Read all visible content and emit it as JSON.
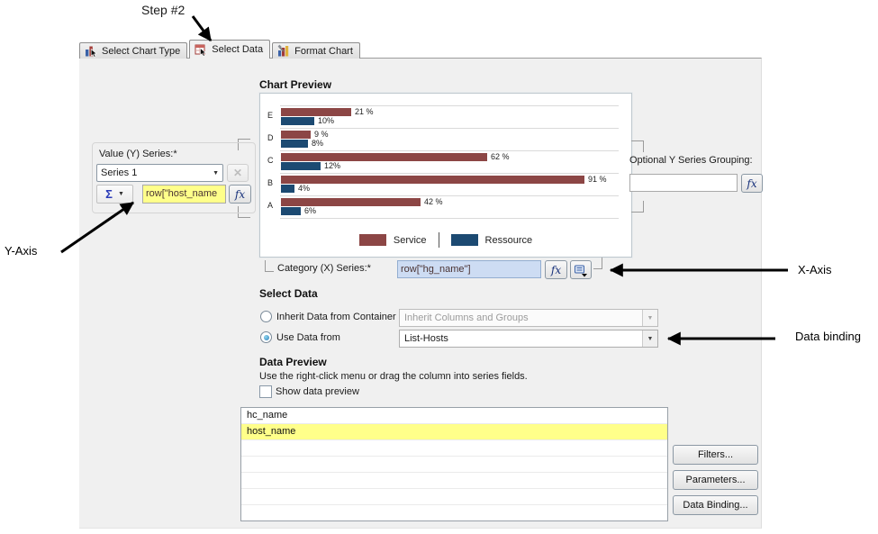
{
  "colors": {
    "service_bar": "#8c4645",
    "ressource_bar": "#1c4a72",
    "yellow_highlight": "#ffff8a",
    "blue_highlight": "#cddcf3",
    "panel_bg": "#f0f0f0"
  },
  "icons": {
    "dropdown_caret": "▼",
    "remove_series": "✕",
    "sigma": "Σ"
  },
  "annotations": {
    "step_label": "Step #2",
    "y_axis_label": "Y-Axis",
    "x_axis_label": "X-Axis",
    "data_binding_label": "Data binding"
  },
  "tabs": [
    {
      "label": "Select Chart Type",
      "icon": "chart-type-icon",
      "active": false
    },
    {
      "label": "Select Data",
      "icon": "select-data-icon",
      "active": true
    },
    {
      "label": "Format Chart",
      "icon": "format-chart-icon",
      "active": false
    }
  ],
  "chart_preview": {
    "title": "Chart Preview"
  },
  "chart_data": {
    "type": "bar",
    "orientation": "horizontal",
    "categories": [
      "E",
      "D",
      "C",
      "B",
      "A"
    ],
    "series": [
      {
        "name": "Service",
        "color": "#8c4645",
        "values": [
          21,
          9,
          62,
          91,
          42
        ],
        "labels": [
          "21 %",
          "9 %",
          "62 %",
          "91 %",
          "42 %"
        ]
      },
      {
        "name": "Ressource",
        "color": "#1c4a72",
        "values": [
          10,
          8,
          12,
          4,
          6
        ],
        "labels": [
          "10%",
          "8%",
          "12%",
          "4%",
          "6%"
        ]
      }
    ],
    "xlim": [
      0,
      100
    ],
    "grid": true,
    "legend_position": "bottom"
  },
  "y_series": {
    "label": "Value (Y) Series:*",
    "selected_series": "Series 1",
    "expression": "row[\"host_name",
    "fx": "fx"
  },
  "y_grouping": {
    "label": "Optional Y Series Grouping:",
    "value": "",
    "fx": "fx"
  },
  "x_series": {
    "label": "Category (X) Series:*",
    "expression": "row[\"hg_name\"]",
    "fx": "fx"
  },
  "select_data": {
    "title": "Select Data",
    "options": [
      {
        "label": "Inherit Data from Container",
        "selected": false,
        "value": "Inherit Columns and Groups",
        "enabled": false
      },
      {
        "label": "Use Data from",
        "selected": true,
        "value": "List-Hosts",
        "enabled": true
      }
    ]
  },
  "data_preview": {
    "title": "Data Preview",
    "hint": "Use the right-click menu or drag the column into series fields.",
    "show_checkbox_label": "Show data preview",
    "show_checked": false,
    "columns": [
      {
        "name": "hc_name",
        "highlighted": false
      },
      {
        "name": "host_name",
        "highlighted": true
      }
    ],
    "empty_row_count": 5
  },
  "action_buttons": [
    "Filters...",
    "Parameters...",
    "Data Binding..."
  ]
}
